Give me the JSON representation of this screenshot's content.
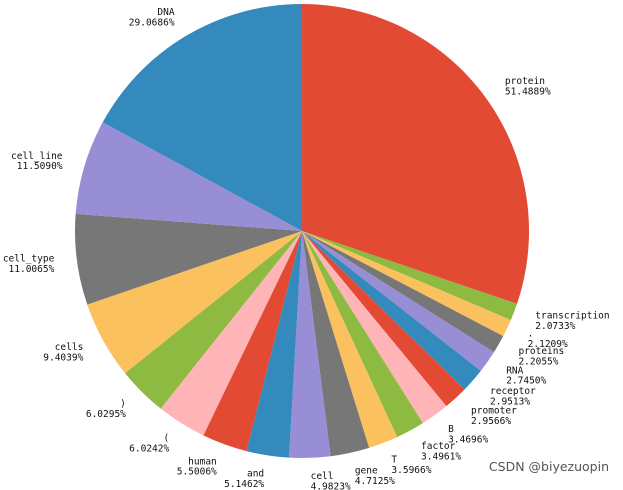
{
  "chart_data": {
    "type": "pie",
    "start_angle_deg": 90,
    "direction": "clockwise",
    "slices": [
      {
        "label": "protein",
        "value": 51.4889,
        "display": "51.4889%",
        "color": "#E24A33"
      },
      {
        "label": "transcription",
        "value": 2.0733,
        "display": "2.0733%",
        "color": "#8EBA42"
      },
      {
        "label": ".",
        "value": 2.1209,
        "display": "2.1209%",
        "color": "#FBC15E"
      },
      {
        "label": "proteins",
        "value": 2.2055,
        "display": "2.2055%",
        "color": "#777777"
      },
      {
        "label": "RNA",
        "value": 2.745,
        "display": "2.7450%",
        "color": "#988ED5"
      },
      {
        "label": "receptor",
        "value": 2.9513,
        "display": "2.9513%",
        "color": "#348ABD"
      },
      {
        "label": "promoter",
        "value": 2.9566,
        "display": "2.9566%",
        "color": "#E24A33"
      },
      {
        "label": "B",
        "value": 3.4696,
        "display": "3.4696%",
        "color": "#FFB5B8"
      },
      {
        "label": "factor",
        "value": 3.4961,
        "display": "3.4961%",
        "color": "#8EBA42"
      },
      {
        "label": "T",
        "value": 3.5966,
        "display": "3.5966%",
        "color": "#FBC15E"
      },
      {
        "label": "gene",
        "value": 4.7125,
        "display": "4.7125%",
        "color": "#777777"
      },
      {
        "label": "cell",
        "value": 4.9823,
        "display": "4.9823%",
        "color": "#988ED5"
      },
      {
        "label": "and",
        "value": 5.1462,
        "display": "5.1462%",
        "color": "#348ABD"
      },
      {
        "label": "human",
        "value": 5.5006,
        "display": "5.5006%",
        "color": "#E24A33"
      },
      {
        "label": "(",
        "value": 6.0242,
        "display": "6.0242%",
        "color": "#FFB5B8"
      },
      {
        "label": ")",
        "value": 6.0295,
        "display": "6.0295%",
        "color": "#8EBA42"
      },
      {
        "label": "cells",
        "value": 9.4039,
        "display": "9.4039%",
        "color": "#FBC15E"
      },
      {
        "label": "cell_type",
        "value": 11.0065,
        "display": "11.0065%",
        "color": "#777777"
      },
      {
        "label": "cell_line",
        "value": 11.509,
        "display": "11.5090%",
        "color": "#988ED5"
      },
      {
        "label": "DNA",
        "value": 29.0686,
        "display": "29.0686%",
        "color": "#348ABD"
      }
    ]
  },
  "watermark": "CSDN @biyezuopin"
}
